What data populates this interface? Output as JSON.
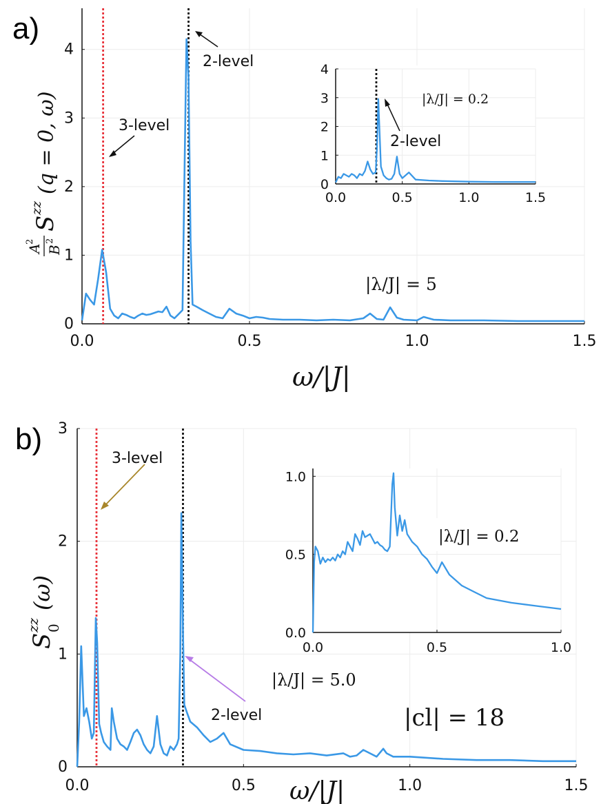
{
  "chart_data": [
    {
      "type": "line",
      "panel_label": "a)",
      "xlabel": "ω/|J|",
      "ylabel": "(A²/B²) S^{zz}(q = 0, ω)",
      "ylabel_parts": {
        "num": "A",
        "den": "B",
        "sup": "2",
        "S": "S",
        "zz": "zz",
        "args": "(q = 0, ω)"
      },
      "xlim": [
        0.0,
        1.5
      ],
      "ylim": [
        0,
        4.6
      ],
      "xticks": [
        0.0,
        0.5,
        1.0,
        1.5
      ],
      "xtick_labels": [
        "0.0",
        "0.5",
        "1.0",
        "1.5"
      ],
      "yticks": [
        0,
        1,
        2,
        3,
        4
      ],
      "ytick_labels": [
        "0",
        "1",
        "2",
        "3",
        "4"
      ],
      "grid": true,
      "vlines": [
        {
          "x": 0.063,
          "color": "#e8333b",
          "name": "3-level"
        },
        {
          "x": 0.318,
          "color": "#111111",
          "name": "2-level"
        }
      ],
      "annotations": {
        "three_level": "3-level",
        "two_level": "2-level",
        "lambda_label": "|λ/J| = 5"
      },
      "series": [
        {
          "name": "S(ω)",
          "color": "#3a98e6",
          "x": [
            0.0,
            0.012,
            0.024,
            0.036,
            0.048,
            0.06,
            0.072,
            0.084,
            0.096,
            0.108,
            0.12,
            0.132,
            0.144,
            0.156,
            0.168,
            0.18,
            0.192,
            0.204,
            0.216,
            0.228,
            0.24,
            0.252,
            0.264,
            0.276,
            0.288,
            0.3,
            0.306,
            0.312,
            0.318,
            0.324,
            0.33,
            0.342,
            0.36,
            0.38,
            0.4,
            0.42,
            0.44,
            0.46,
            0.48,
            0.5,
            0.52,
            0.54,
            0.56,
            0.6,
            0.65,
            0.7,
            0.75,
            0.8,
            0.84,
            0.86,
            0.88,
            0.9,
            0.92,
            0.94,
            0.96,
            1.0,
            1.02,
            1.05,
            1.1,
            1.2,
            1.3,
            1.4,
            1.5
          ],
          "y": [
            0.05,
            0.44,
            0.35,
            0.28,
            0.65,
            1.08,
            0.75,
            0.22,
            0.12,
            0.08,
            0.15,
            0.13,
            0.1,
            0.08,
            0.12,
            0.15,
            0.13,
            0.14,
            0.16,
            0.18,
            0.17,
            0.25,
            0.12,
            0.08,
            0.14,
            0.2,
            2.2,
            4.15,
            3.6,
            1.2,
            0.28,
            0.25,
            0.2,
            0.15,
            0.1,
            0.08,
            0.22,
            0.15,
            0.12,
            0.08,
            0.1,
            0.09,
            0.07,
            0.06,
            0.06,
            0.05,
            0.06,
            0.05,
            0.08,
            0.15,
            0.07,
            0.06,
            0.24,
            0.09,
            0.06,
            0.05,
            0.1,
            0.06,
            0.05,
            0.05,
            0.04,
            0.04,
            0.04
          ]
        }
      ],
      "inset": {
        "xlim": [
          0.0,
          1.5
        ],
        "ylim": [
          0,
          4
        ],
        "xticks": [
          0.0,
          0.5,
          1.0,
          1.5
        ],
        "xtick_labels": [
          "0.0",
          "0.5",
          "1.0",
          "1.5"
        ],
        "yticks": [
          0,
          1,
          2,
          3,
          4
        ],
        "ytick_labels": [
          "0",
          "1",
          "2",
          "3",
          "4"
        ],
        "vline_x": 0.305,
        "annotations": {
          "lambda_label": "|λ/J| = 0.2",
          "two_level": "2-level"
        },
        "x": [
          0.0,
          0.02,
          0.04,
          0.06,
          0.08,
          0.1,
          0.12,
          0.14,
          0.16,
          0.18,
          0.2,
          0.22,
          0.24,
          0.26,
          0.28,
          0.3,
          0.31,
          0.32,
          0.34,
          0.36,
          0.38,
          0.4,
          0.42,
          0.44,
          0.46,
          0.48,
          0.5,
          0.55,
          0.6,
          0.7,
          0.8,
          1.0,
          1.2,
          1.5
        ],
        "y": [
          0.05,
          0.25,
          0.2,
          0.35,
          0.3,
          0.25,
          0.35,
          0.3,
          0.2,
          0.35,
          0.3,
          0.45,
          0.78,
          0.5,
          0.35,
          0.4,
          1.2,
          2.95,
          0.6,
          0.3,
          0.2,
          0.15,
          0.18,
          0.35,
          0.95,
          0.35,
          0.2,
          0.4,
          0.15,
          0.12,
          0.1,
          0.08,
          0.07,
          0.07
        ]
      }
    },
    {
      "type": "line",
      "panel_label": "b)",
      "xlabel": "ω/|J|",
      "ylabel": "S_0^{zz}(ω)",
      "ylabel_parts": {
        "S": "S",
        "sub": "0",
        "zz": "zz",
        "args": "(ω)"
      },
      "xlim": [
        0.0,
        1.5
      ],
      "ylim": [
        0,
        3
      ],
      "xticks": [
        0.0,
        0.5,
        1.0,
        1.5
      ],
      "xtick_labels": [
        "0.0",
        "0.5",
        "1.0",
        "1.5"
      ],
      "yticks": [
        0,
        1,
        2,
        3
      ],
      "ytick_labels": [
        "0",
        "1",
        "2",
        "3"
      ],
      "grid": true,
      "vlines": [
        {
          "x": 0.058,
          "color": "#e8333b",
          "name": "3-level"
        },
        {
          "x": 0.318,
          "color": "#111111",
          "name": "2-level"
        }
      ],
      "annotations": {
        "three_level": "3-level",
        "two_level": "2-level",
        "lambda_label": "|λ/J| = 5.0",
        "cl_label": "|cl| = 18"
      },
      "series": [
        {
          "name": "S0(ω)",
          "color": "#3a98e6",
          "x": [
            0.0,
            0.006,
            0.012,
            0.02,
            0.028,
            0.036,
            0.044,
            0.05,
            0.056,
            0.06,
            0.066,
            0.072,
            0.08,
            0.09,
            0.1,
            0.104,
            0.11,
            0.12,
            0.13,
            0.14,
            0.15,
            0.16,
            0.17,
            0.18,
            0.19,
            0.2,
            0.21,
            0.22,
            0.23,
            0.24,
            0.25,
            0.26,
            0.27,
            0.28,
            0.29,
            0.3,
            0.305,
            0.31,
            0.313,
            0.318,
            0.322,
            0.33,
            0.34,
            0.36,
            0.38,
            0.4,
            0.42,
            0.44,
            0.46,
            0.5,
            0.55,
            0.6,
            0.65,
            0.7,
            0.75,
            0.8,
            0.82,
            0.84,
            0.86,
            0.88,
            0.9,
            0.92,
            0.93,
            0.95,
            1.0,
            1.1,
            1.2,
            1.3,
            1.4,
            1.5
          ],
          "y": [
            0.0,
            0.4,
            1.07,
            0.45,
            0.52,
            0.4,
            0.25,
            0.3,
            1.32,
            1.1,
            0.38,
            0.3,
            0.22,
            0.18,
            0.15,
            0.52,
            0.4,
            0.25,
            0.2,
            0.18,
            0.15,
            0.22,
            0.3,
            0.33,
            0.28,
            0.2,
            0.15,
            0.12,
            0.18,
            0.45,
            0.2,
            0.12,
            0.1,
            0.18,
            0.15,
            0.2,
            0.25,
            1.0,
            2.25,
            1.2,
            0.55,
            0.48,
            0.4,
            0.35,
            0.28,
            0.22,
            0.25,
            0.3,
            0.2,
            0.15,
            0.14,
            0.12,
            0.11,
            0.12,
            0.1,
            0.12,
            0.09,
            0.1,
            0.15,
            0.12,
            0.09,
            0.16,
            0.12,
            0.09,
            0.09,
            0.07,
            0.06,
            0.06,
            0.05,
            0.05
          ]
        }
      ],
      "inset": {
        "xlim": [
          0.0,
          1.0
        ],
        "ylim": [
          0.0,
          1.05
        ],
        "xticks": [
          0.0,
          0.5,
          1.0
        ],
        "xtick_labels": [
          "0.0",
          "0.5",
          "1.0"
        ],
        "yticks": [
          0.0,
          0.5,
          1.0
        ],
        "ytick_labels": [
          "0.0",
          "0.5",
          "1.0"
        ],
        "annotations": {
          "lambda_label": "|λ/J| = 0.2"
        },
        "x": [
          0.0,
          0.005,
          0.01,
          0.02,
          0.03,
          0.04,
          0.05,
          0.06,
          0.07,
          0.08,
          0.09,
          0.1,
          0.11,
          0.12,
          0.13,
          0.14,
          0.15,
          0.16,
          0.17,
          0.18,
          0.19,
          0.2,
          0.21,
          0.22,
          0.23,
          0.24,
          0.25,
          0.26,
          0.27,
          0.28,
          0.29,
          0.3,
          0.31,
          0.32,
          0.325,
          0.33,
          0.34,
          0.35,
          0.36,
          0.37,
          0.38,
          0.4,
          0.42,
          0.44,
          0.46,
          0.48,
          0.5,
          0.52,
          0.55,
          0.6,
          0.65,
          0.7,
          0.8,
          0.9,
          1.0
        ],
        "y": [
          0.0,
          0.45,
          0.55,
          0.52,
          0.44,
          0.48,
          0.45,
          0.47,
          0.46,
          0.48,
          0.46,
          0.5,
          0.48,
          0.52,
          0.5,
          0.58,
          0.55,
          0.52,
          0.63,
          0.6,
          0.56,
          0.65,
          0.61,
          0.62,
          0.63,
          0.6,
          0.57,
          0.58,
          0.56,
          0.55,
          0.53,
          0.52,
          0.55,
          0.95,
          1.02,
          0.8,
          0.62,
          0.75,
          0.65,
          0.72,
          0.63,
          0.58,
          0.55,
          0.5,
          0.47,
          0.42,
          0.38,
          0.45,
          0.37,
          0.3,
          0.26,
          0.22,
          0.19,
          0.17,
          0.15
        ]
      }
    }
  ]
}
